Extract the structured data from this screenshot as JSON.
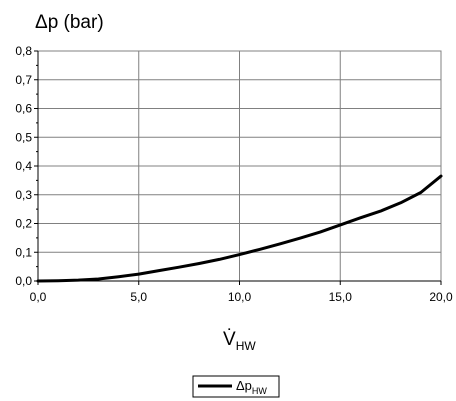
{
  "chart_data": {
    "type": "line",
    "ylabel": "Δp (bar)",
    "xlabel": "V̇",
    "xlabel_subscript": "HW",
    "xlim": [
      0,
      20
    ],
    "ylim": [
      0,
      0.8
    ],
    "x_ticks": [
      "0,0",
      "5,0",
      "10,0",
      "15,0",
      "20,0"
    ],
    "y_ticks": [
      "0,0",
      "0,1",
      "0,2",
      "0,3",
      "0,4",
      "0,5",
      "0,6",
      "0,7",
      "0,8"
    ],
    "grid": true,
    "legend_position": "bottom-center",
    "series": [
      {
        "name": "Δp",
        "name_subscript": "HW",
        "color": "#000000",
        "x": [
          0,
          1,
          2,
          3,
          4,
          5,
          6,
          7,
          8,
          9,
          10,
          11,
          12,
          13,
          14,
          15,
          16,
          17,
          18,
          19,
          20
        ],
        "y": [
          0.0,
          0.001,
          0.003,
          0.007,
          0.015,
          0.024,
          0.036,
          0.048,
          0.061,
          0.075,
          0.092,
          0.11,
          0.129,
          0.149,
          0.17,
          0.195,
          0.22,
          0.243,
          0.272,
          0.308,
          0.365
        ]
      }
    ]
  }
}
